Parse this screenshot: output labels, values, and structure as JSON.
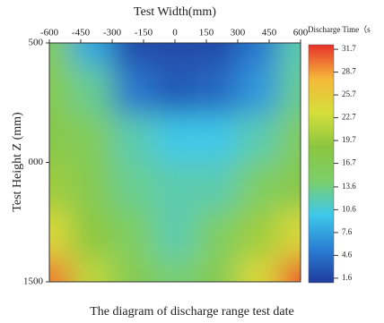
{
  "chart_data": {
    "type": "contour",
    "xlabel": "Test Width(mm)",
    "ylabel": "Test Height Z (mm)",
    "colorbar_label": "Discharge Time（s",
    "caption": "The diagram of discharge range test date",
    "x": [
      -600,
      -400,
      -200,
      0,
      200,
      400,
      600
    ],
    "y": [
      500,
      700,
      900,
      1100,
      1300,
      1500
    ],
    "z": [
      [
        16,
        8,
        2,
        2,
        2,
        5,
        12
      ],
      [
        17,
        13,
        5,
        3,
        4,
        7,
        13
      ],
      [
        18,
        16,
        12,
        10,
        10,
        12,
        16
      ],
      [
        20,
        17,
        13,
        12,
        12,
        15,
        18
      ],
      [
        24,
        19,
        15,
        12,
        15,
        20,
        24
      ],
      [
        30,
        22,
        17,
        14,
        17,
        24,
        31
      ]
    ],
    "xlim": [
      -600,
      600
    ],
    "xticks": [
      -600,
      -450,
      -300,
      -150,
      0,
      150,
      300,
      450,
      600
    ],
    "ylim": [
      500,
      1500
    ],
    "yticks": [
      500,
      {
        "value": 1000,
        "label": "000"
      },
      1500
    ],
    "clim": [
      1,
      32.3
    ],
    "cticks": [
      31.7,
      28.7,
      25.7,
      22.7,
      19.7,
      16.7,
      13.6,
      10.6,
      7.6,
      4.6,
      1.6
    ],
    "colormap": [
      "#1f3c9e",
      "#2a7fd4",
      "#3ec8ea",
      "#7ccf6a",
      "#8bc63f",
      "#d6df3a",
      "#f5b83a",
      "#e8302a"
    ]
  }
}
